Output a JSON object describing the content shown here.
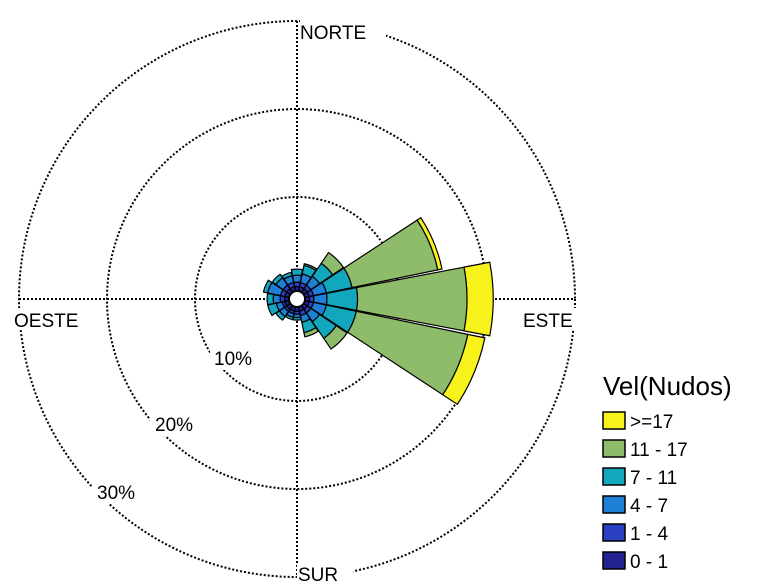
{
  "chart_data": {
    "type": "windrose",
    "directions": [
      "N",
      "NNE",
      "NE",
      "ENE",
      "E",
      "ESE",
      "SE",
      "SSE",
      "S",
      "SSW",
      "SW",
      "WSW",
      "W",
      "WNW",
      "NW",
      "NNW"
    ],
    "direction_labels": {
      "north": "NORTE",
      "east": "ESTE",
      "south": "SUR",
      "west": "OESTE"
    },
    "radial_labels": [
      "10%",
      "20%",
      "30%"
    ],
    "radial_max_percent": 30,
    "legend_title": "Vel(Nudos)",
    "bins": [
      {
        "label": ">=17",
        "color": "#f7f21c"
      },
      {
        "label": "11 - 17",
        "color": "#8fbc6a"
      },
      {
        "label": "7 - 11",
        "color": "#12a7bd"
      },
      {
        "label": "4 - 7",
        "color": "#1d7fd6"
      },
      {
        "label": "1 - 4",
        "color": "#2b3fc2"
      },
      {
        "label": "0 - 1",
        "color": "#23238f"
      }
    ],
    "cumulative_percent_by_direction": {
      "N": [
        0.5,
        1.0,
        1.8,
        2.5,
        2.5,
        2.5
      ],
      "NNE": [
        0.5,
        1.0,
        2.0,
        3.0,
        3.2,
        3.2
      ],
      "NE": [
        0.5,
        1.0,
        2.2,
        4.0,
        5.5,
        5.5
      ],
      "ENE": [
        0.5,
        1.0,
        2.5,
        5.5,
        15.5,
        16.0
      ],
      "E": [
        0.5,
        1.0,
        2.5,
        6.0,
        18.5,
        21.5
      ],
      "ESE": [
        0.5,
        1.0,
        2.5,
        6.0,
        19.0,
        21.0
      ],
      "SE": [
        0.5,
        1.0,
        2.2,
        4.5,
        6.0,
        6.0
      ],
      "SSE": [
        0.5,
        1.0,
        1.8,
        3.0,
        3.5,
        3.5
      ],
      "S": [
        0.5,
        0.8,
        1.2,
        1.5,
        1.5,
        1.5
      ],
      "SSW": [
        0.5,
        0.8,
        1.2,
        1.5,
        1.5,
        1.5
      ],
      "SW": [
        0.5,
        0.8,
        1.5,
        2.0,
        2.0,
        2.0
      ],
      "WSW": [
        0.5,
        0.8,
        1.5,
        2.5,
        2.5,
        2.5
      ],
      "W": [
        0.5,
        1.0,
        1.8,
        2.5,
        2.5,
        2.5
      ],
      "WNW": [
        0.5,
        1.0,
        2.5,
        3.0,
        3.0,
        3.0
      ],
      "NW": [
        0.5,
        1.0,
        2.0,
        2.5,
        2.5,
        2.5
      ],
      "NNW": [
        0.5,
        1.0,
        1.8,
        2.2,
        2.2,
        2.2
      ]
    }
  }
}
